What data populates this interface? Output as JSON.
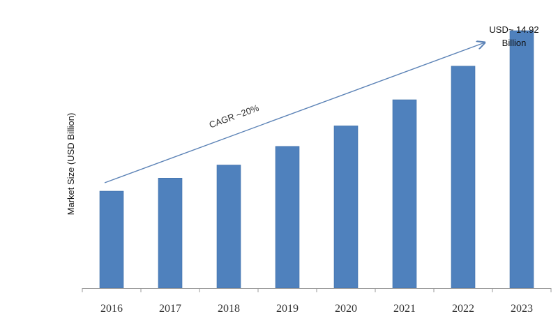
{
  "chart_data": {
    "type": "bar",
    "title": "",
    "xlabel": "",
    "ylabel": "Market Size (USD Billion)",
    "categories": [
      "2016",
      "2017",
      "2018",
      "2019",
      "2020",
      "2021",
      "2022",
      "2023"
    ],
    "values": [
      5.2,
      5.9,
      6.6,
      7.6,
      8.7,
      10.1,
      11.9,
      13.8
    ],
    "ylim": [
      0,
      14.4
    ],
    "grid": false,
    "legend": "none",
    "colors": {
      "bar": "#4f81bd",
      "bar_edge": "#3f6fa8",
      "arrow": "#5b82b6",
      "axis": "#9a9a9a"
    },
    "annotations": {
      "cagr": "CAGR ~20%",
      "end_value_line1": "USD~ 14.92",
      "end_value_line2": "Billion"
    }
  }
}
